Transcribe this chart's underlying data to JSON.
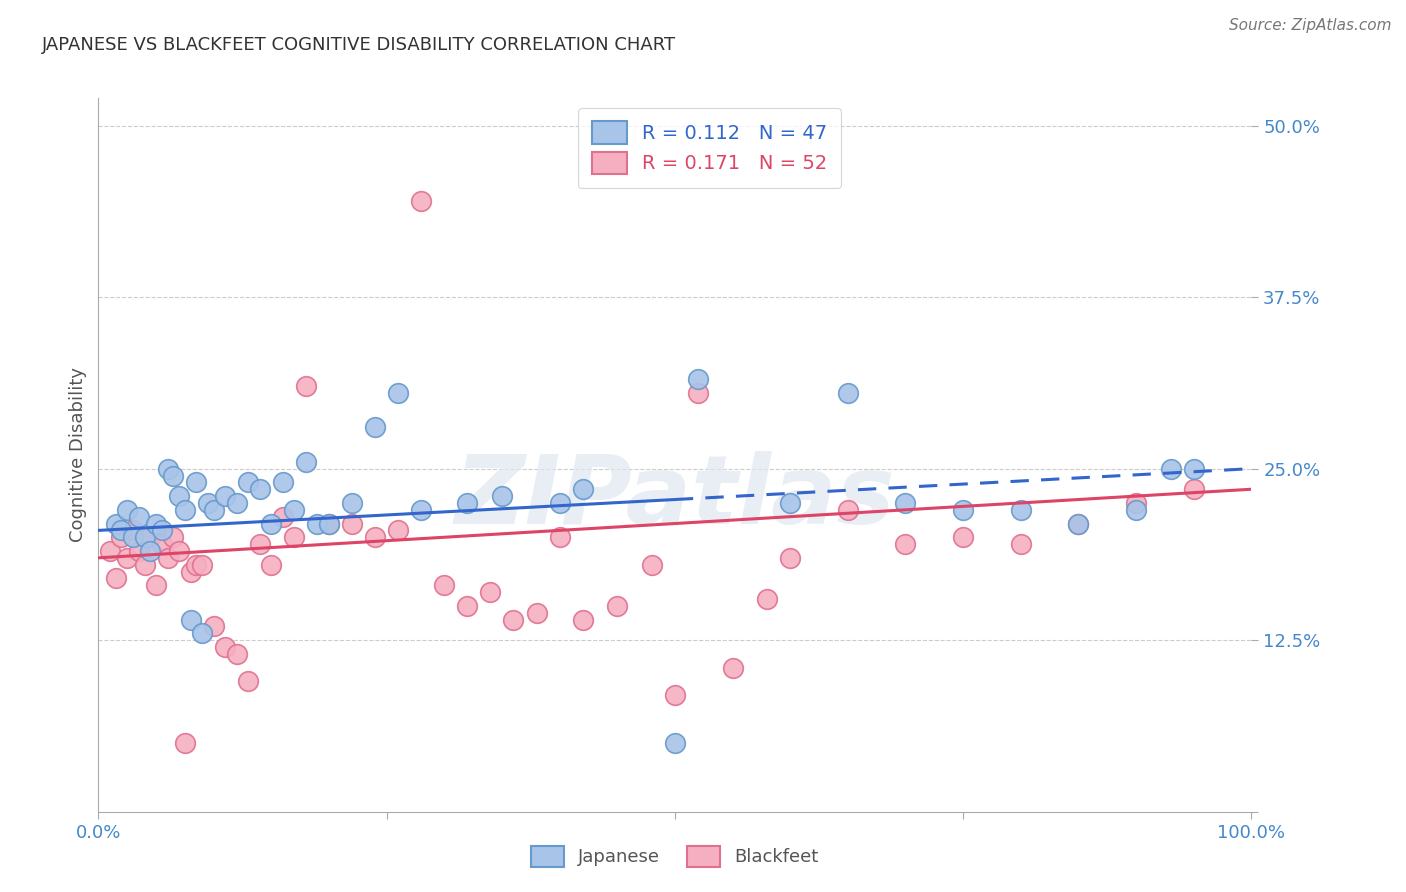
{
  "title": "JAPANESE VS BLACKFEET COGNITIVE DISABILITY CORRELATION CHART",
  "source": "Source: ZipAtlas.com",
  "ylabel": "Cognitive Disability",
  "xlim": [
    0.0,
    100.0
  ],
  "ylim": [
    0.0,
    52.0
  ],
  "japanese_color": "#a8c4e8",
  "blackfeet_color": "#f5afc0",
  "japanese_edge": "#6699cc",
  "blackfeet_edge": "#e07090",
  "trend_blue": "#3366cc",
  "trend_pink": "#dd4466",
  "tick_color": "#4488cc",
  "R_japanese": 0.112,
  "N_japanese": 47,
  "R_blackfeet": 0.171,
  "N_blackfeet": 52,
  "watermark": "ZIPatlas",
  "jp_x": [
    1.5,
    2.0,
    2.5,
    3.0,
    3.5,
    4.0,
    4.5,
    5.0,
    5.5,
    6.0,
    6.5,
    7.0,
    7.5,
    8.0,
    8.5,
    9.0,
    9.5,
    10.0,
    11.0,
    12.0,
    13.0,
    14.0,
    15.0,
    16.0,
    17.0,
    18.0,
    19.0,
    20.0,
    22.0,
    24.0,
    26.0,
    28.0,
    32.0,
    35.0,
    40.0,
    42.0,
    50.0,
    52.0,
    60.0,
    65.0,
    70.0,
    75.0,
    80.0,
    85.0,
    90.0,
    93.0,
    95.0
  ],
  "jp_y": [
    21.0,
    20.5,
    22.0,
    20.0,
    21.5,
    20.0,
    19.0,
    21.0,
    20.5,
    25.0,
    24.5,
    23.0,
    22.0,
    14.0,
    24.0,
    13.0,
    22.5,
    22.0,
    23.0,
    22.5,
    24.0,
    23.5,
    21.0,
    24.0,
    22.0,
    25.5,
    21.0,
    21.0,
    22.5,
    28.0,
    30.5,
    22.0,
    22.5,
    23.0,
    22.5,
    23.5,
    5.0,
    31.5,
    22.5,
    30.5,
    22.5,
    22.0,
    22.0,
    21.0,
    22.0,
    25.0,
    25.0
  ],
  "bf_x": [
    1.0,
    1.5,
    2.0,
    2.5,
    3.0,
    3.5,
    4.0,
    4.5,
    5.0,
    5.5,
    6.0,
    6.5,
    7.0,
    7.5,
    8.0,
    8.5,
    9.0,
    10.0,
    11.0,
    12.0,
    13.0,
    14.0,
    15.0,
    16.0,
    17.0,
    18.0,
    20.0,
    22.0,
    24.0,
    26.0,
    28.0,
    30.0,
    32.0,
    34.0,
    36.0,
    38.0,
    40.0,
    42.0,
    45.0,
    48.0,
    50.0,
    52.0,
    55.0,
    58.0,
    60.0,
    65.0,
    70.0,
    75.0,
    80.0,
    85.0,
    90.0,
    95.0
  ],
  "bf_y": [
    19.0,
    17.0,
    20.0,
    18.5,
    20.5,
    19.0,
    18.0,
    20.0,
    16.5,
    19.5,
    18.5,
    20.0,
    19.0,
    5.0,
    17.5,
    18.0,
    18.0,
    13.5,
    12.0,
    11.5,
    9.5,
    19.5,
    18.0,
    21.5,
    20.0,
    31.0,
    21.0,
    21.0,
    20.0,
    20.5,
    44.5,
    16.5,
    15.0,
    16.0,
    14.0,
    14.5,
    20.0,
    14.0,
    15.0,
    18.0,
    8.5,
    30.5,
    10.5,
    15.5,
    18.5,
    22.0,
    19.5,
    20.0,
    19.5,
    21.0,
    22.5,
    23.5
  ],
  "trend_jp_x0": 0.0,
  "trend_jp_y0": 20.5,
  "trend_jp_x1": 100.0,
  "trend_jp_y1": 25.0,
  "trend_bf_x0": 0.0,
  "trend_bf_y0": 18.5,
  "trend_bf_x1": 100.0,
  "trend_bf_y1": 23.5,
  "jp_dash_start": 50.0,
  "bf_solid_end": 100.0
}
